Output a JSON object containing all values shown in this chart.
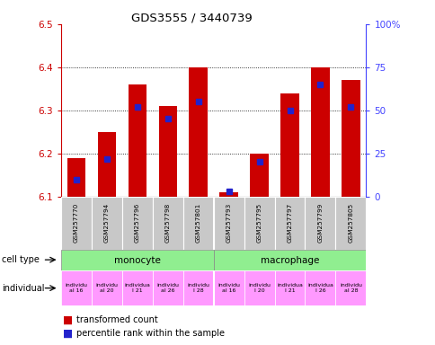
{
  "title": "GDS3555 / 3440739",
  "samples": [
    "GSM257770",
    "GSM257794",
    "GSM257796",
    "GSM257798",
    "GSM257801",
    "GSM257793",
    "GSM257795",
    "GSM257797",
    "GSM257799",
    "GSM257805"
  ],
  "transformed_counts": [
    6.19,
    6.25,
    6.36,
    6.31,
    6.4,
    6.11,
    6.2,
    6.34,
    6.4,
    6.37
  ],
  "percentile_ranks": [
    10,
    22,
    52,
    45,
    55,
    3,
    20,
    50,
    65,
    52
  ],
  "ylim_left": [
    6.1,
    6.5
  ],
  "ylim_right": [
    0,
    100
  ],
  "yticks_left": [
    6.1,
    6.2,
    6.3,
    6.4,
    6.5
  ],
  "yticks_right": [
    0,
    25,
    50,
    75,
    100
  ],
  "indiv_color": "#FF99FF",
  "bar_color": "#CC0000",
  "blue_color": "#2222CC",
  "axis_left_color": "#CC0000",
  "axis_right_color": "#4444FF",
  "tick_bg": "#C8C8C8",
  "cell_type_color": "#90EE90"
}
